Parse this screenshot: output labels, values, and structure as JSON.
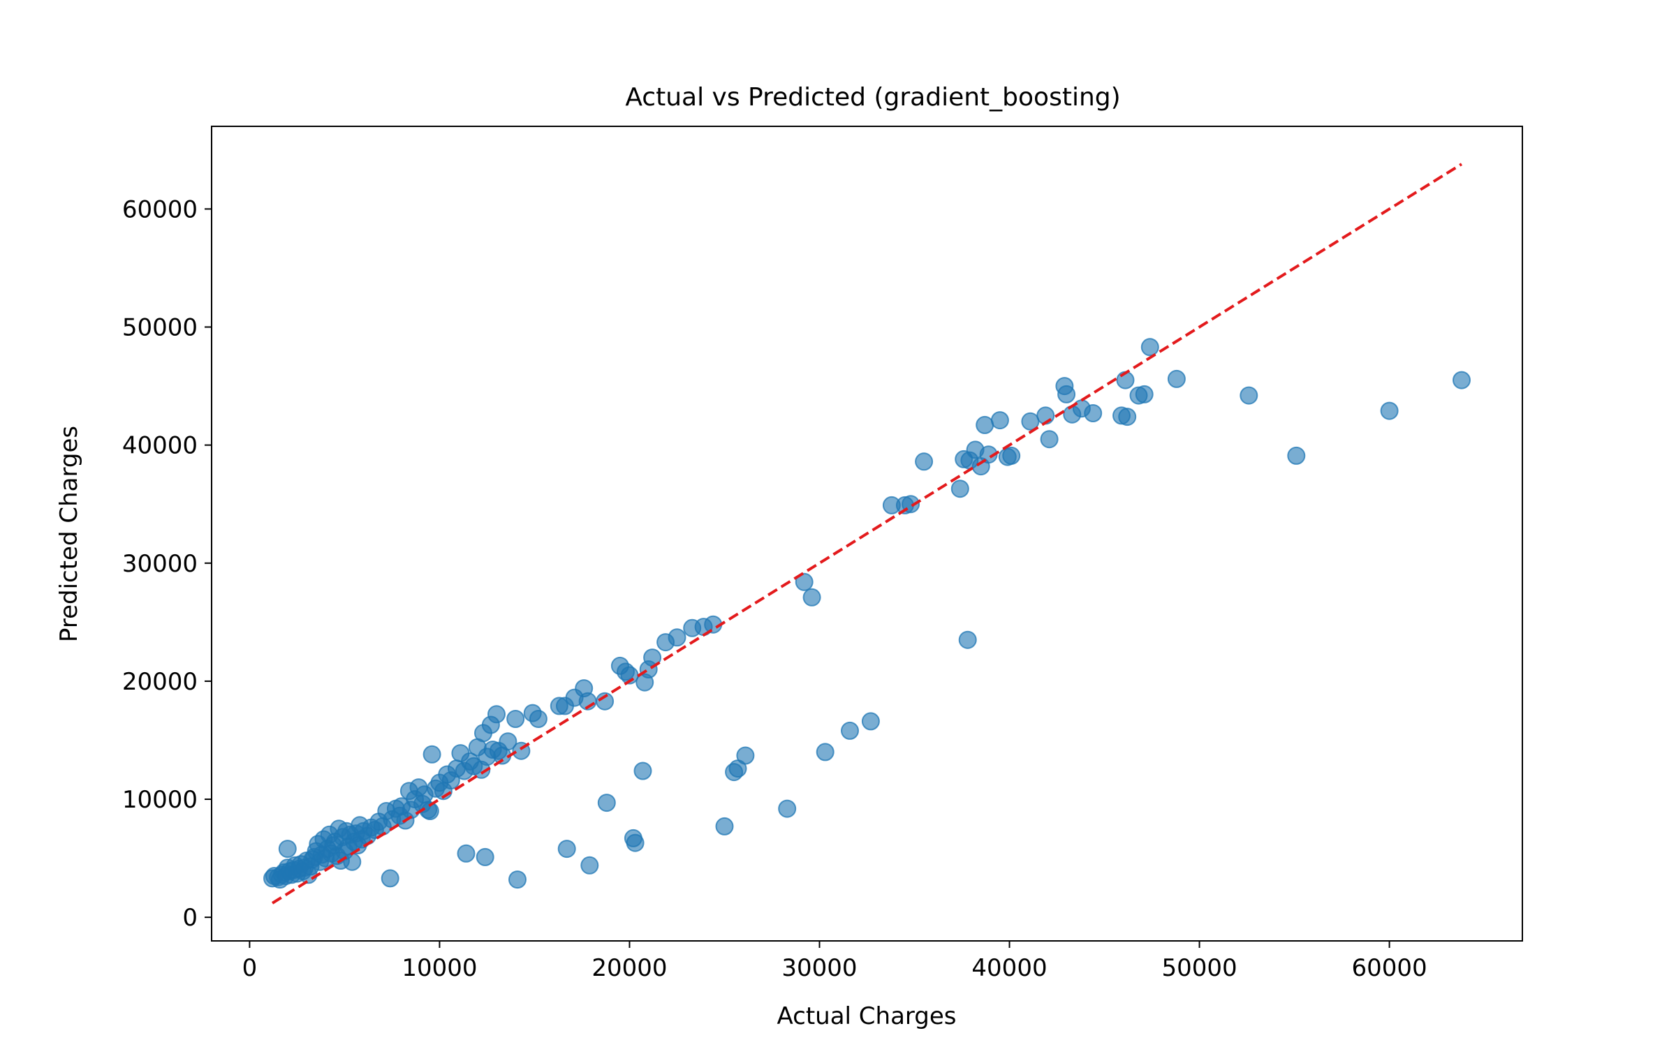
{
  "chart_data": {
    "type": "scatter",
    "title": "Actual vs Predicted (gradient_boosting)",
    "xlabel": "Actual Charges",
    "ylabel": "Predicted Charges",
    "xlim": [
      -2000,
      67000
    ],
    "ylim": [
      -2000,
      67000
    ],
    "xticks": [
      0,
      10000,
      20000,
      30000,
      40000,
      50000,
      60000
    ],
    "yticks": [
      0,
      10000,
      20000,
      30000,
      40000,
      50000,
      60000
    ],
    "xtick_labels": [
      "0",
      "10000",
      "20000",
      "30000",
      "40000",
      "50000",
      "60000"
    ],
    "ytick_labels": [
      "0",
      "10000",
      "20000",
      "30000",
      "40000",
      "50000",
      "60000"
    ],
    "grid": false,
    "colors": {
      "points": "#1f77b4",
      "reference_line": "#e31a1c"
    },
    "reference_line": {
      "style": "dashed",
      "x": [
        1200,
        63800
      ],
      "y": [
        1200,
        63800
      ]
    },
    "points": [
      [
        1200,
        3300
      ],
      [
        1300,
        3500
      ],
      [
        1500,
        3400
      ],
      [
        1600,
        3200
      ],
      [
        1700,
        3600
      ],
      [
        1800,
        3800
      ],
      [
        1900,
        3500
      ],
      [
        2000,
        5800
      ],
      [
        2000,
        4200
      ],
      [
        2100,
        3900
      ],
      [
        2200,
        3600
      ],
      [
        2300,
        4000
      ],
      [
        2400,
        4400
      ],
      [
        2500,
        3700
      ],
      [
        2600,
        4100
      ],
      [
        2700,
        4500
      ],
      [
        2800,
        3900
      ],
      [
        2900,
        4200
      ],
      [
        3000,
        4800
      ],
      [
        3100,
        3600
      ],
      [
        3200,
        4300
      ],
      [
        3300,
        4900
      ],
      [
        3400,
        5100
      ],
      [
        3500,
        5600
      ],
      [
        3600,
        6200
      ],
      [
        3700,
        4700
      ],
      [
        3800,
        5300
      ],
      [
        3900,
        6600
      ],
      [
        4000,
        5000
      ],
      [
        4100,
        5800
      ],
      [
        4200,
        7000
      ],
      [
        4300,
        5400
      ],
      [
        4400,
        6100
      ],
      [
        4500,
        6400
      ],
      [
        4600,
        5200
      ],
      [
        4700,
        7500
      ],
      [
        4800,
        4800
      ],
      [
        4900,
        6800
      ],
      [
        5000,
        5600
      ],
      [
        5100,
        7300
      ],
      [
        5200,
        6000
      ],
      [
        5300,
        7000
      ],
      [
        5400,
        4700
      ],
      [
        5500,
        6400
      ],
      [
        5600,
        7100
      ],
      [
        5700,
        6100
      ],
      [
        5800,
        7800
      ],
      [
        5900,
        6600
      ],
      [
        6000,
        7300
      ],
      [
        6200,
        6900
      ],
      [
        6400,
        7600
      ],
      [
        6600,
        7400
      ],
      [
        6800,
        8100
      ],
      [
        7000,
        7700
      ],
      [
        7200,
        9000
      ],
      [
        7400,
        3300
      ],
      [
        7500,
        8300
      ],
      [
        7700,
        9200
      ],
      [
        7900,
        8600
      ],
      [
        8000,
        9400
      ],
      [
        8200,
        8200
      ],
      [
        8400,
        10700
      ],
      [
        8500,
        9100
      ],
      [
        8700,
        10000
      ],
      [
        8900,
        11000
      ],
      [
        9100,
        9600
      ],
      [
        9200,
        10400
      ],
      [
        9400,
        9100
      ],
      [
        9500,
        9000
      ],
      [
        9600,
        13800
      ],
      [
        9800,
        10900
      ],
      [
        10000,
        11400
      ],
      [
        10200,
        10700
      ],
      [
        10400,
        12100
      ],
      [
        10600,
        11600
      ],
      [
        10900,
        12600
      ],
      [
        11100,
        13900
      ],
      [
        11300,
        12400
      ],
      [
        11400,
        5400
      ],
      [
        11600,
        13200
      ],
      [
        11800,
        12800
      ],
      [
        12000,
        14400
      ],
      [
        12200,
        12500
      ],
      [
        12300,
        15600
      ],
      [
        12400,
        5100
      ],
      [
        12500,
        13600
      ],
      [
        12700,
        16300
      ],
      [
        12800,
        14200
      ],
      [
        13000,
        17200
      ],
      [
        13100,
        14100
      ],
      [
        13300,
        13700
      ],
      [
        13600,
        14900
      ],
      [
        14000,
        16800
      ],
      [
        14100,
        3200
      ],
      [
        14300,
        14100
      ],
      [
        14900,
        17300
      ],
      [
        15200,
        16800
      ],
      [
        16300,
        17900
      ],
      [
        16600,
        17900
      ],
      [
        16700,
        5800
      ],
      [
        17100,
        18600
      ],
      [
        17600,
        19400
      ],
      [
        17800,
        18300
      ],
      [
        17900,
        4400
      ],
      [
        18700,
        18300
      ],
      [
        18800,
        9700
      ],
      [
        19500,
        21300
      ],
      [
        19800,
        20800
      ],
      [
        20000,
        20500
      ],
      [
        20200,
        6700
      ],
      [
        20300,
        6300
      ],
      [
        20700,
        12400
      ],
      [
        20800,
        19900
      ],
      [
        21000,
        21000
      ],
      [
        21200,
        22000
      ],
      [
        21900,
        23300
      ],
      [
        22500,
        23700
      ],
      [
        23300,
        24500
      ],
      [
        23900,
        24600
      ],
      [
        24400,
        24800
      ],
      [
        25000,
        7700
      ],
      [
        25500,
        12300
      ],
      [
        25700,
        12600
      ],
      [
        26100,
        13700
      ],
      [
        28300,
        9200
      ],
      [
        29200,
        28400
      ],
      [
        29600,
        27100
      ],
      [
        30300,
        14000
      ],
      [
        31600,
        15800
      ],
      [
        32700,
        16600
      ],
      [
        33800,
        34900
      ],
      [
        34500,
        34900
      ],
      [
        34800,
        35000
      ],
      [
        35500,
        38600
      ],
      [
        37400,
        36300
      ],
      [
        37600,
        38800
      ],
      [
        37800,
        23500
      ],
      [
        37900,
        38700
      ],
      [
        38200,
        39600
      ],
      [
        38500,
        38200
      ],
      [
        38700,
        41700
      ],
      [
        38900,
        39200
      ],
      [
        39500,
        42100
      ],
      [
        39900,
        39000
      ],
      [
        40100,
        39100
      ],
      [
        41100,
        42000
      ],
      [
        41900,
        42500
      ],
      [
        42100,
        40500
      ],
      [
        42900,
        45000
      ],
      [
        43000,
        44300
      ],
      [
        43300,
        42600
      ],
      [
        43800,
        43100
      ],
      [
        44400,
        42700
      ],
      [
        45900,
        42500
      ],
      [
        46100,
        45500
      ],
      [
        46200,
        42400
      ],
      [
        46800,
        44200
      ],
      [
        47100,
        44300
      ],
      [
        47400,
        48300
      ],
      [
        48800,
        45600
      ],
      [
        52600,
        44200
      ],
      [
        55100,
        39100
      ],
      [
        60000,
        42900
      ],
      [
        63800,
        45500
      ]
    ]
  }
}
